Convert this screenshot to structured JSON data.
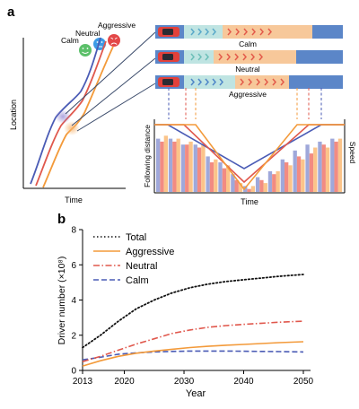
{
  "panel_a": {
    "label": "a",
    "faces": {
      "calm": "Calm",
      "neutral": "Neutral",
      "aggressive": "Aggressive"
    },
    "ylabel": "Location",
    "xlabel": "Time",
    "strips": [
      {
        "label": "Calm",
        "accent": "#5aa9c9"
      },
      {
        "label": "Neutral",
        "accent": "#6cbfb8"
      },
      {
        "label": "Aggressive",
        "accent": "#4e86c8"
      }
    ],
    "bar_panel": {
      "ylabel_left": "Following distance",
      "ylabel_right": "Speed",
      "xlabel": "Time"
    }
  },
  "panel_b": {
    "label": "b"
  },
  "colors": {
    "calm": "#4a5bb5",
    "neutral": "#e0584d",
    "aggressive": "#f39a3a",
    "total": "#111111"
  },
  "chart_data": [
    {
      "type": "line",
      "x": [
        2013,
        2016,
        2019,
        2022,
        2025,
        2028,
        2031,
        2034,
        2037,
        2040,
        2043,
        2046,
        2050
      ],
      "xlabel": "Year",
      "ylabel": "Driver number (×10⁸)",
      "xlim": [
        2013,
        2050
      ],
      "ylim": [
        0,
        8
      ],
      "xticks": [
        2013,
        2020,
        2030,
        2040,
        2050
      ],
      "yticks": [
        0,
        2,
        4,
        6,
        8
      ],
      "legend_position": "top-left",
      "series": [
        {
          "name": "Total",
          "style": "dotted",
          "color": "#111111",
          "values": [
            1.3,
            2.0,
            2.8,
            3.5,
            4.0,
            4.4,
            4.7,
            4.9,
            5.05,
            5.15,
            5.25,
            5.35,
            5.45
          ]
        },
        {
          "name": "Aggressive",
          "style": "solid",
          "color": "#f39a3a",
          "values": [
            0.25,
            0.55,
            0.8,
            0.98,
            1.1,
            1.2,
            1.3,
            1.37,
            1.43,
            1.48,
            1.53,
            1.58,
            1.63
          ]
        },
        {
          "name": "Neutral",
          "style": "dashdot",
          "color": "#e0584d",
          "values": [
            0.5,
            0.8,
            1.15,
            1.5,
            1.8,
            2.1,
            2.3,
            2.45,
            2.55,
            2.62,
            2.68,
            2.74,
            2.8
          ]
        },
        {
          "name": "Calm",
          "style": "dashed",
          "color": "#4a5bb5",
          "values": [
            0.6,
            0.75,
            0.92,
            1.0,
            1.05,
            1.08,
            1.1,
            1.1,
            1.1,
            1.09,
            1.08,
            1.07,
            1.05
          ]
        }
      ]
    },
    {
      "type": "bar",
      "series": [
        {
          "color": "#9fa8da",
          "values": [
            0.9,
            0.9,
            0.8,
            0.8,
            0.6,
            0.5,
            0.3,
            0.1,
            0.25,
            0.35,
            0.55,
            0.7,
            0.8,
            0.85,
            0.9
          ]
        },
        {
          "color": "#f28b82",
          "values": [
            0.85,
            0.85,
            0.8,
            0.75,
            0.5,
            0.4,
            0.2,
            0.05,
            0.2,
            0.3,
            0.5,
            0.6,
            0.65,
            0.8,
            0.85
          ]
        },
        {
          "color": "#fbc48a",
          "values": [
            0.95,
            0.9,
            0.85,
            0.8,
            0.55,
            0.45,
            0.15,
            0.1,
            0.15,
            0.35,
            0.45,
            0.55,
            0.75,
            0.75,
            0.9
          ]
        }
      ]
    }
  ]
}
